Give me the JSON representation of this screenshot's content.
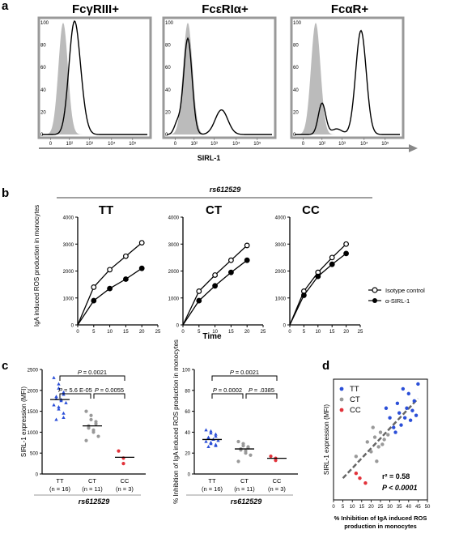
{
  "panel_a": {
    "label": "a",
    "titles": [
      "FcγRIII+",
      "FcεRIα+",
      "FcαR+"
    ],
    "x_ticks": [
      "0",
      "10²",
      "10³",
      "10⁴",
      "10⁵"
    ],
    "y_ticks": [
      "0",
      "20",
      "40",
      "60",
      "80",
      "100"
    ],
    "x_axis_label": "SIRL-1"
  },
  "panel_b": {
    "label": "b",
    "snp_label": "rs612529",
    "genotypes": [
      "TT",
      "CT",
      "CC"
    ],
    "y_axis_label": "IgA induced ROS production in monocytes",
    "x_axis_label": "Time",
    "y_ticks": [
      "0",
      "1000",
      "2000",
      "3000",
      "4000"
    ],
    "x_ticks": [
      "0",
      "5",
      "10",
      "15",
      "20",
      "25"
    ],
    "legend": [
      "Isotype control",
      "α-SIRL-1"
    ]
  },
  "panel_c": {
    "label": "c",
    "left": {
      "y_axis_label": "SIRL-1 expression (MFI)",
      "y_ticks": [
        "0",
        "500",
        "1000",
        "1500",
        "2000",
        "2500"
      ],
      "groups": [
        "TT",
        "CT",
        "CC"
      ],
      "ns": [
        "(n = 16)",
        "(n = 11)",
        "(n = 3)"
      ],
      "p_top": "= 0.0021",
      "p_left": "= 5.6 E-05",
      "p_right": "= 0.0055",
      "snp_label": "rs612529"
    },
    "right": {
      "y_axis_label": "% Inhibition of IgA induced ROS production in monocytes",
      "y_ticks": [
        "0",
        "20",
        "40",
        "60",
        "80",
        "100"
      ],
      "groups": [
        "TT",
        "CT",
        "CC"
      ],
      "ns": [
        "(n = 16)",
        "(n = 11)",
        "(n = 3)"
      ],
      "p_top": "= 0.0021",
      "p_left": "= 0.0002",
      "p_right": "= .0385",
      "snp_label": "rs612529"
    }
  },
  "panel_d": {
    "label": "d",
    "y_axis_label": "SIRL-1 expression (MFI)",
    "x_axis_label": "% Inhibition of IgA induced ROS production in monocytes",
    "x_ticks": [
      "0",
      "5",
      "10",
      "15",
      "20",
      "25",
      "30",
      "35",
      "40",
      "45",
      "50"
    ],
    "legend": [
      "TT",
      "CT",
      "CC"
    ],
    "r2": "r² = 0.58",
    "p": "P < 0.0001"
  },
  "chart_data": [
    {
      "type": "line",
      "panel": "b-TT",
      "x": [
        0,
        5,
        10,
        15,
        20
      ],
      "series": [
        {
          "name": "Isotype control",
          "values": [
            0,
            1400,
            2050,
            2550,
            3050
          ]
        },
        {
          "name": "α-SIRL-1",
          "values": [
            0,
            900,
            1350,
            1700,
            2100
          ]
        }
      ],
      "xlim": [
        0,
        25
      ],
      "ylim": [
        0,
        4000
      ]
    },
    {
      "type": "line",
      "panel": "b-CT",
      "x": [
        0,
        5,
        10,
        15,
        20
      ],
      "series": [
        {
          "name": "Isotype control",
          "values": [
            0,
            1250,
            1850,
            2400,
            2950
          ]
        },
        {
          "name": "α-SIRL-1",
          "values": [
            0,
            900,
            1450,
            1950,
            2400
          ]
        }
      ],
      "xlim": [
        0,
        25
      ],
      "ylim": [
        0,
        4000
      ]
    },
    {
      "type": "line",
      "panel": "b-CC",
      "x": [
        0,
        5,
        10,
        15,
        20
      ],
      "series": [
        {
          "name": "Isotype control",
          "values": [
            0,
            1250,
            1950,
            2500,
            3000
          ]
        },
        {
          "name": "α-SIRL-1",
          "values": [
            0,
            1100,
            1800,
            2250,
            2650
          ]
        }
      ],
      "xlim": [
        0,
        25
      ],
      "ylim": [
        0,
        4000
      ]
    },
    {
      "type": "scatter",
      "panel": "c-left",
      "categories": [
        "TT",
        "CT",
        "CC"
      ],
      "series": [
        {
          "name": "TT",
          "values": [
            2300,
            2150,
            2050,
            1950,
            1900,
            1850,
            1800,
            1780,
            1750,
            1700,
            1650,
            1600,
            1550,
            1450,
            1350,
            1300
          ]
        },
        {
          "name": "CT",
          "values": [
            1500,
            1400,
            1300,
            1250,
            1200,
            1150,
            1100,
            1050,
            1000,
            900,
            800
          ]
        },
        {
          "name": "CC",
          "values": [
            550,
            380,
            250
          ]
        }
      ],
      "medians": [
        1780,
        1150,
        400
      ],
      "ylim": [
        0,
        2500
      ]
    },
    {
      "type": "scatter",
      "panel": "c-right",
      "categories": [
        "TT",
        "CT",
        "CC"
      ],
      "series": [
        {
          "name": "TT",
          "values": [
            42,
            41,
            39,
            38,
            36,
            35,
            34,
            33,
            33,
            32,
            31,
            30,
            29,
            28,
            27,
            26
          ]
        },
        {
          "name": "CT",
          "values": [
            31,
            29,
            27,
            26,
            25,
            24,
            23,
            22,
            20,
            18,
            12
          ]
        },
        {
          "name": "CC",
          "values": [
            17,
            15,
            13
          ]
        }
      ],
      "medians": [
        33,
        24,
        15
      ],
      "ylim": [
        0,
        100
      ]
    },
    {
      "type": "scatter",
      "panel": "d",
      "series": [
        {
          "name": "TT",
          "points": [
            [
              28,
              1900
            ],
            [
              30,
              1700
            ],
            [
              32,
              1500
            ],
            [
              34,
              2000
            ],
            [
              35,
              1800
            ],
            [
              36,
              1550
            ],
            [
              37,
              2300
            ],
            [
              38,
              1700
            ],
            [
              39,
              1900
            ],
            [
              40,
              2200
            ],
            [
              41,
              1650
            ],
            [
              42,
              1850
            ],
            [
              43,
              2050
            ],
            [
              44,
              1750
            ],
            [
              45,
              2400
            ],
            [
              33,
              1400
            ]
          ]
        },
        {
          "name": "CT",
          "points": [
            [
              12,
              900
            ],
            [
              18,
              1200
            ],
            [
              20,
              1000
            ],
            [
              22,
              1300
            ],
            [
              24,
              1100
            ],
            [
              25,
              1400
            ],
            [
              26,
              1150
            ],
            [
              27,
              1250
            ],
            [
              29,
              1350
            ],
            [
              21,
              1500
            ],
            [
              23,
              800
            ]
          ]
        },
        {
          "name": "CC",
          "points": [
            [
              12,
              550
            ],
            [
              17,
              350
            ],
            [
              14,
              450
            ]
          ]
        }
      ],
      "xlim": [
        0,
        50
      ],
      "ylim": [
        0,
        2500
      ],
      "trend": {
        "x": [
          5,
          45
        ],
        "y": [
          450,
          2100
        ]
      }
    }
  ]
}
